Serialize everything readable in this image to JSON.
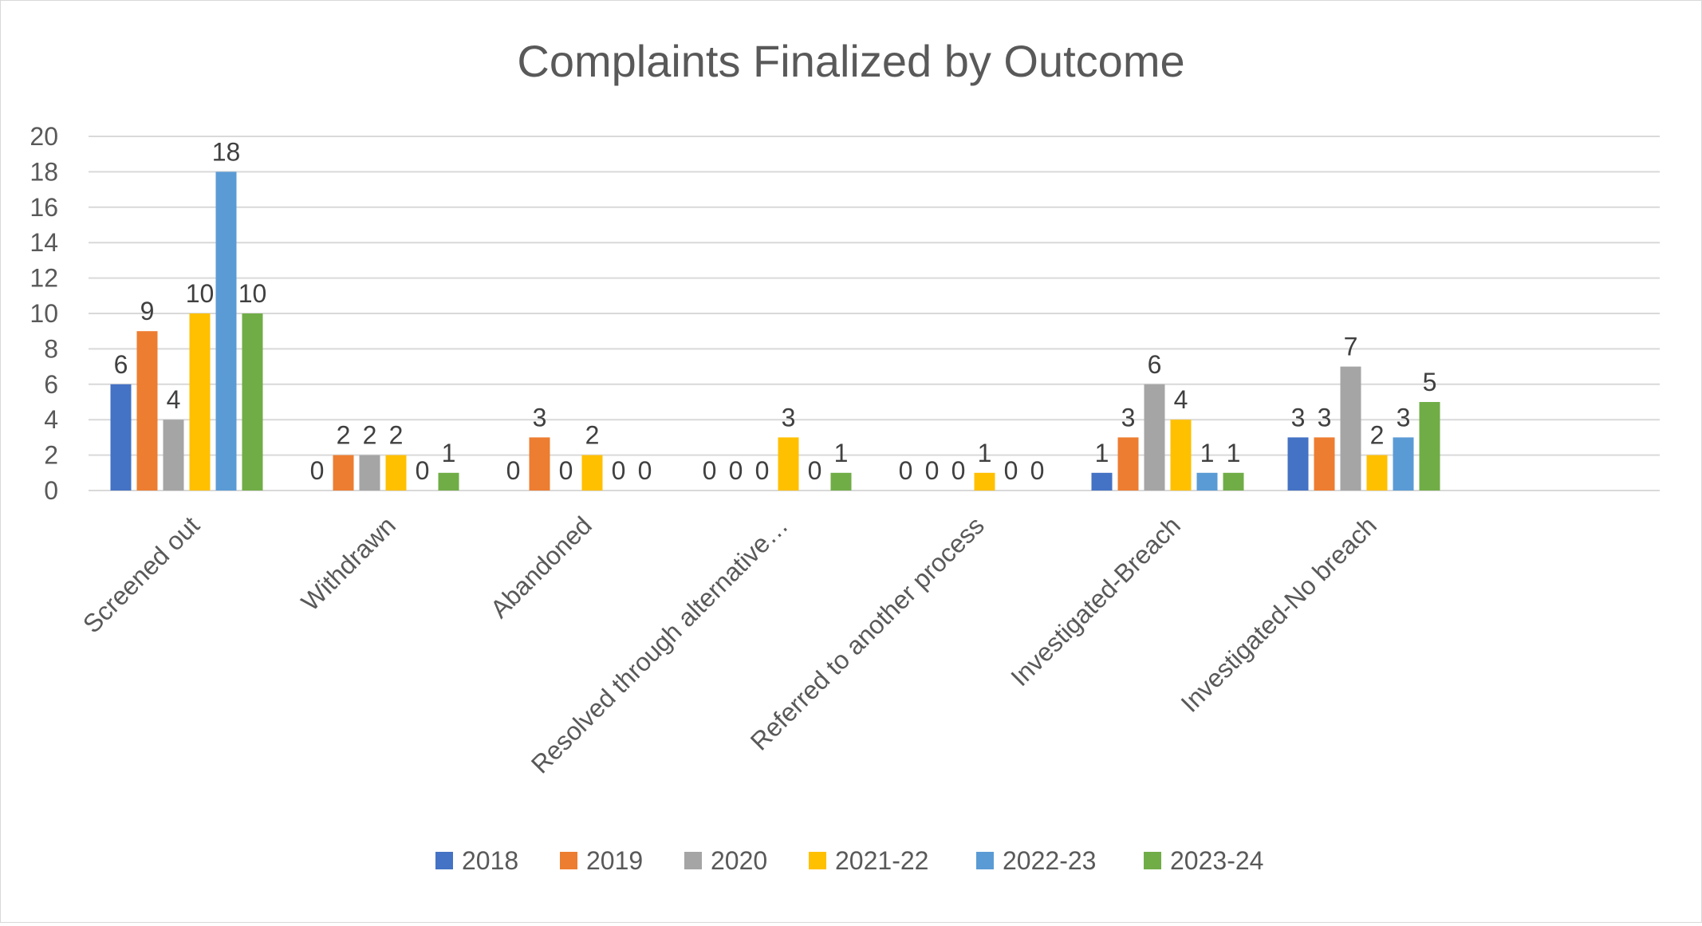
{
  "chart_data": {
    "type": "bar",
    "title": "Complaints Finalized by Outcome",
    "xlabel": "",
    "ylabel": "",
    "ylim": [
      0,
      20
    ],
    "yticks": [
      0,
      2,
      4,
      6,
      8,
      10,
      12,
      14,
      16,
      18,
      20
    ],
    "grid": true,
    "legend_position": "bottom",
    "categories": [
      "Screened out",
      "Withdrawn",
      "Abandoned",
      "Resolved through alternative…",
      "Referred to another process",
      "Investigated-Breach",
      "Investigated-No breach"
    ],
    "series": [
      {
        "name": "2018",
        "color": "#4472c4",
        "values": [
          6,
          0,
          0,
          0,
          0,
          1,
          3
        ]
      },
      {
        "name": "2019",
        "color": "#ed7d31",
        "values": [
          9,
          2,
          3,
          0,
          0,
          3,
          3
        ]
      },
      {
        "name": "2020",
        "color": "#a5a5a5",
        "values": [
          4,
          2,
          0,
          0,
          0,
          6,
          7
        ]
      },
      {
        "name": "2021-22",
        "color": "#ffc000",
        "values": [
          10,
          2,
          2,
          3,
          1,
          4,
          2
        ]
      },
      {
        "name": "2022-23",
        "color": "#5b9bd5",
        "values": [
          18,
          0,
          0,
          0,
          0,
          1,
          3
        ]
      },
      {
        "name": "2023-24",
        "color": "#70ad47",
        "values": [
          10,
          1,
          0,
          1,
          0,
          1,
          5
        ]
      }
    ]
  }
}
